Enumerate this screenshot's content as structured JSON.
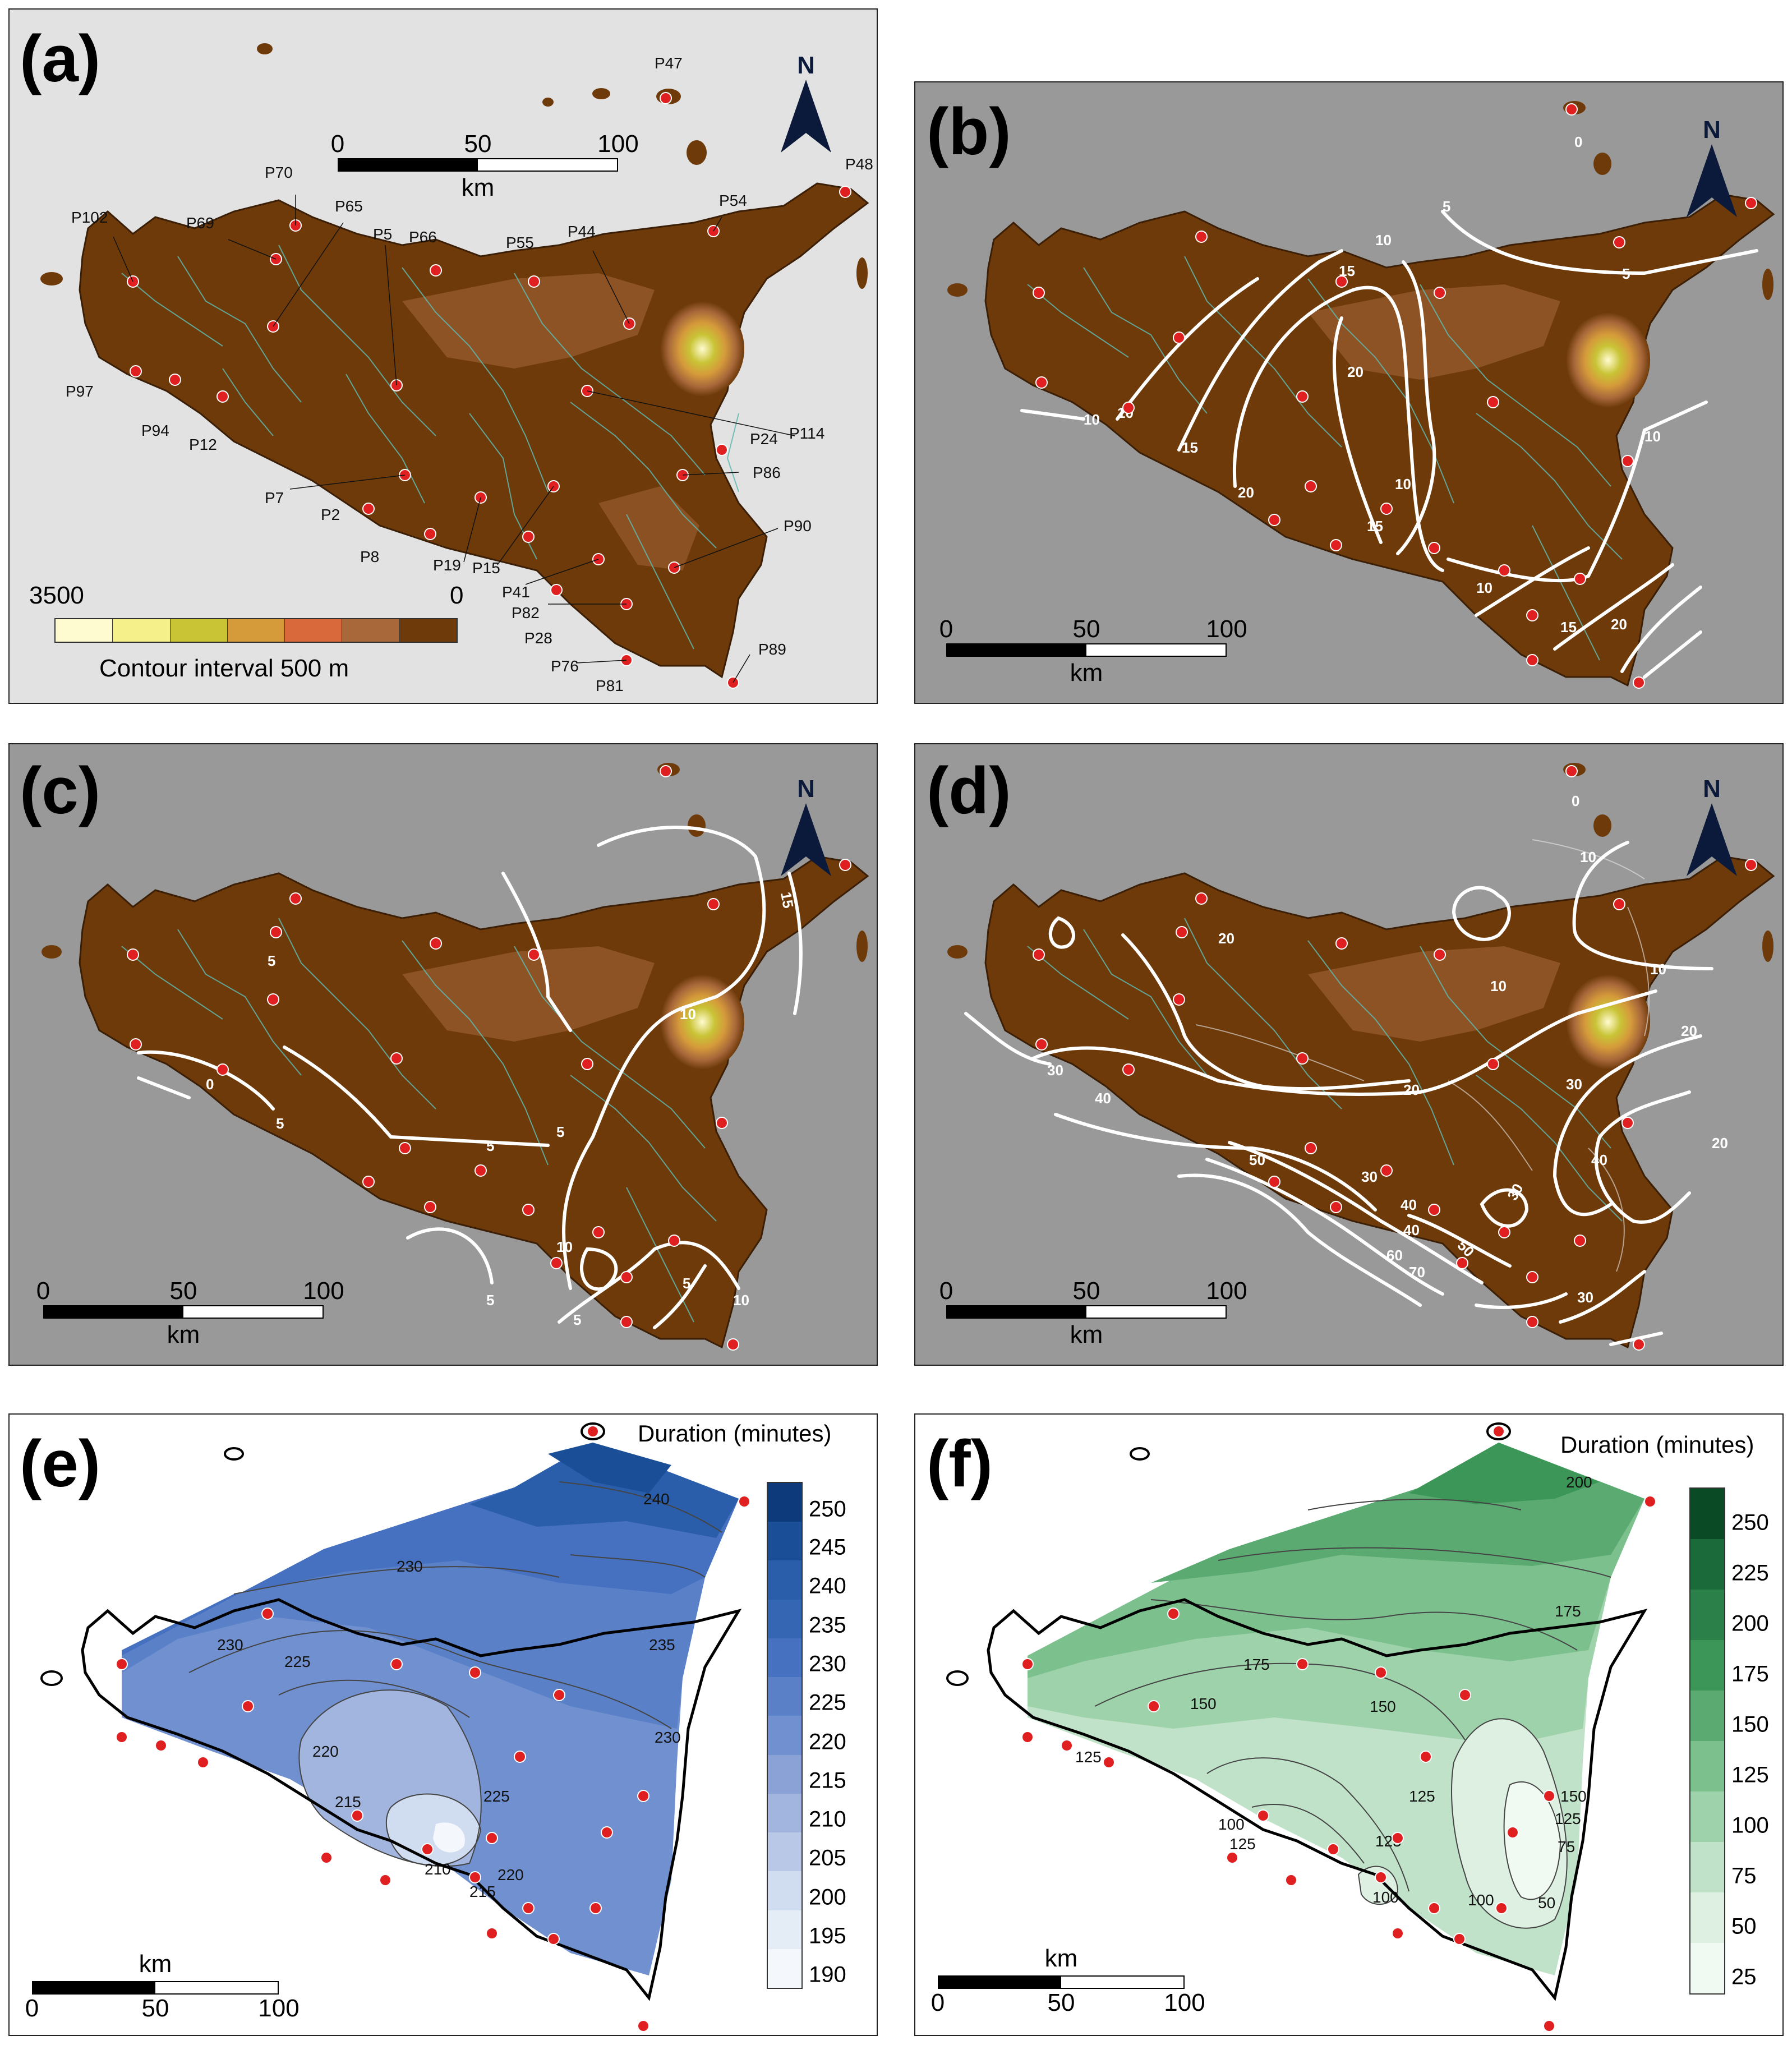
{
  "panels": {
    "a": {
      "label": "(a)"
    },
    "b": {
      "label": "(b)"
    },
    "c": {
      "label": "(c)"
    },
    "d": {
      "label": "(d)"
    },
    "e": {
      "label": "(e)"
    },
    "f": {
      "label": "(f)"
    }
  },
  "north_arrow": {
    "text": "N"
  },
  "scale_bar": {
    "ticks": [
      "0",
      "50",
      "100"
    ],
    "unit": "km"
  },
  "dem_legend": {
    "max_label": "3500",
    "min_label": "0",
    "caption": "Contour interval 500 m",
    "colors": [
      "#fffbd0",
      "#f5f08a",
      "#c9c436",
      "#d59a3a",
      "#d9683a",
      "#a8683a",
      "#6e3a0a"
    ]
  },
  "stations": [
    "P102",
    "P69",
    "P70",
    "P65",
    "P5",
    "P66",
    "P55",
    "P44",
    "P54",
    "P48",
    "P47",
    "P97",
    "P94",
    "P12",
    "P114",
    "P24",
    "P86",
    "P7",
    "P2",
    "P8",
    "P19",
    "P15",
    "P41",
    "P82",
    "P28",
    "P76",
    "P81",
    "P90",
    "P89"
  ],
  "panel_b": {
    "contours": [
      "0",
      "5",
      "5",
      "10",
      "15",
      "10",
      "10",
      "15",
      "20",
      "20",
      "10",
      "15",
      "10",
      "10",
      "15",
      "20"
    ]
  },
  "panel_c": {
    "contours": [
      "15",
      "10",
      "5",
      "5",
      "5",
      "0",
      "5",
      "5",
      "10",
      "10",
      "5",
      "5"
    ]
  },
  "panel_d": {
    "contours": [
      "0",
      "10",
      "20",
      "10",
      "10",
      "20",
      "30",
      "30",
      "40",
      "20",
      "30",
      "20",
      "40",
      "50",
      "30",
      "40",
      "30",
      "60",
      "70",
      "50",
      "40"
    ]
  },
  "panel_e": {
    "colorbar_title": "Duration (minutes)",
    "ticks": [
      "250",
      "245",
      "240",
      "235",
      "230",
      "225",
      "220",
      "215",
      "210",
      "205",
      "200",
      "195",
      "190"
    ],
    "colors": [
      "#0d3a7a",
      "#1a4f98",
      "#2a5eaa",
      "#3466b4",
      "#4670c0",
      "#5a80c8",
      "#7090d0",
      "#8aa2d6",
      "#a2b5de",
      "#b8c8e6",
      "#d0dcef",
      "#e4ecf6",
      "#f4f7fc"
    ],
    "contours": [
      "230",
      "240",
      "235",
      "230",
      "225",
      "220",
      "215",
      "225",
      "210",
      "215",
      "220",
      "230"
    ]
  },
  "panel_f": {
    "colorbar_title": "Duration (minutes)",
    "ticks": [
      "250",
      "225",
      "200",
      "175",
      "150",
      "125",
      "100",
      "75",
      "50",
      "25"
    ],
    "colors": [
      "#0a4a24",
      "#1a6a3a",
      "#2a8048",
      "#3c9658",
      "#5aaa72",
      "#7cc08e",
      "#9ed2aa",
      "#c0e2c8",
      "#ddf0e2",
      "#f1f9f3"
    ],
    "contours": [
      "200",
      "175",
      "175",
      "150",
      "150",
      "125",
      "125",
      "150",
      "125",
      "100",
      "125",
      "125",
      "100",
      "100",
      "75",
      "50"
    ]
  }
}
